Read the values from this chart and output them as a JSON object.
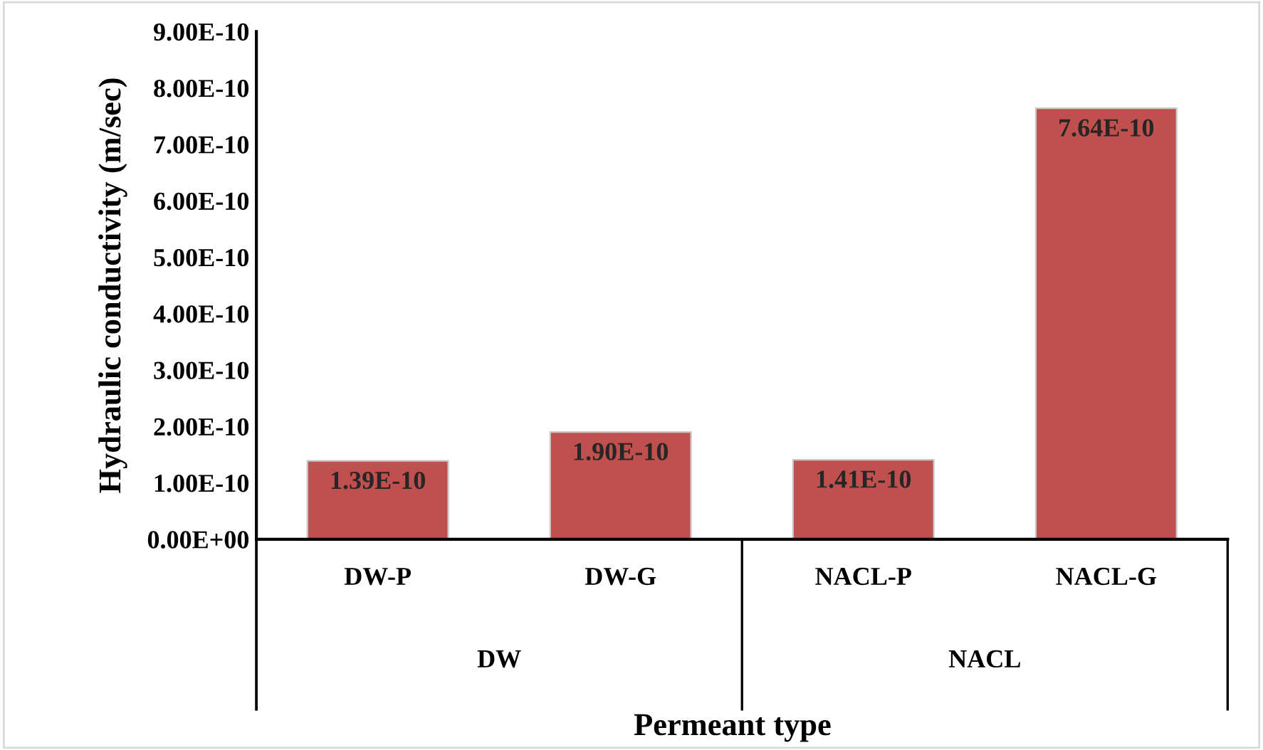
{
  "chart_data": {
    "type": "bar",
    "categories": [
      "DW-P",
      "DW-G",
      "NACL-P",
      "NACL-G"
    ],
    "values": [
      1.39e-10,
      1.9e-10,
      1.41e-10,
      7.64e-10
    ],
    "value_labels": [
      "1.39E-10",
      "1.90E-10",
      "1.41E-10",
      "7.64E-10"
    ],
    "color": "#c0504d",
    "xlabel": "Permeant type",
    "ylabel": "Hydraulic conductivity (m/sec)",
    "annotations": [
      "DW",
      "NACL"
    ],
    "ylim": [
      0,
      9e-10
    ],
    "yticks": [
      {
        "value": 0,
        "label": "0.00E+00"
      },
      {
        "value": 1e-10,
        "label": "1.00E-10"
      },
      {
        "value": 2e-10,
        "label": "2.00E-10"
      },
      {
        "value": 3e-10,
        "label": "3.00E-10"
      },
      {
        "value": 4e-10,
        "label": "4.00E-10"
      },
      {
        "value": 5e-10,
        "label": "5.00E-10"
      },
      {
        "value": 6e-10,
        "label": "6.00E-10"
      },
      {
        "value": 7e-10,
        "label": "7.00E-10"
      },
      {
        "value": 8e-10,
        "label": "8.00E-10"
      },
      {
        "value": 9e-10,
        "label": "9.00E-10"
      }
    ],
    "grid": false,
    "legend": false
  }
}
